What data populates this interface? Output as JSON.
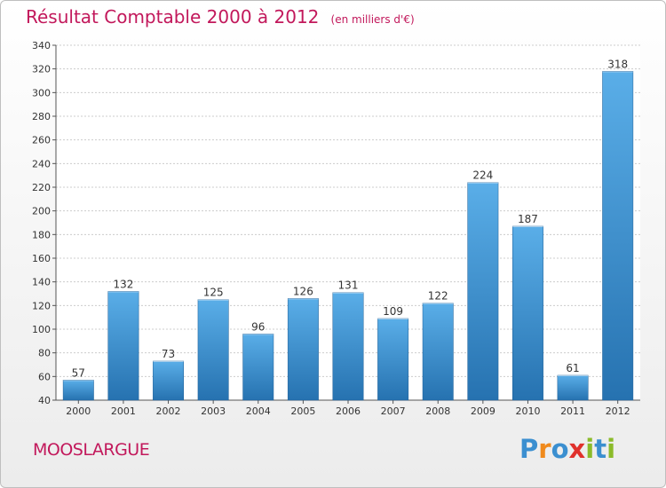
{
  "chart_data": {
    "type": "bar",
    "title": "Résultat Comptable 2000 à 2012",
    "unit_note": "(en milliers d'€)",
    "categories": [
      "2000",
      "2001",
      "2002",
      "2003",
      "2004",
      "2005",
      "2006",
      "2007",
      "2008",
      "2009",
      "2010",
      "2011",
      "2012"
    ],
    "values": [
      57,
      132,
      73,
      125,
      96,
      126,
      131,
      109,
      122,
      224,
      187,
      61,
      318
    ],
    "ylim": [
      40,
      340
    ],
    "yticks": [
      40,
      60,
      80,
      100,
      120,
      140,
      160,
      180,
      200,
      220,
      240,
      260,
      280,
      300,
      320,
      340
    ],
    "xlabel": "",
    "ylabel": "",
    "grid": true,
    "bar_color": "#3d8fd0",
    "bar_color_light": "#5aaee8",
    "bar_color_dark": "#2672b0"
  },
  "footer": {
    "town": "MOOSLARGUE",
    "logo_text": "Proxiti",
    "logo_colors": [
      "#3b8fd0",
      "#f08a1c",
      "#3b8fd0",
      "#e0312c",
      "#8bbb2a",
      "#3b8fd0",
      "#8bbb2a"
    ]
  },
  "colors": {
    "title": "#c2185b",
    "grid": "#cccccc",
    "axis_text": "#333333"
  }
}
